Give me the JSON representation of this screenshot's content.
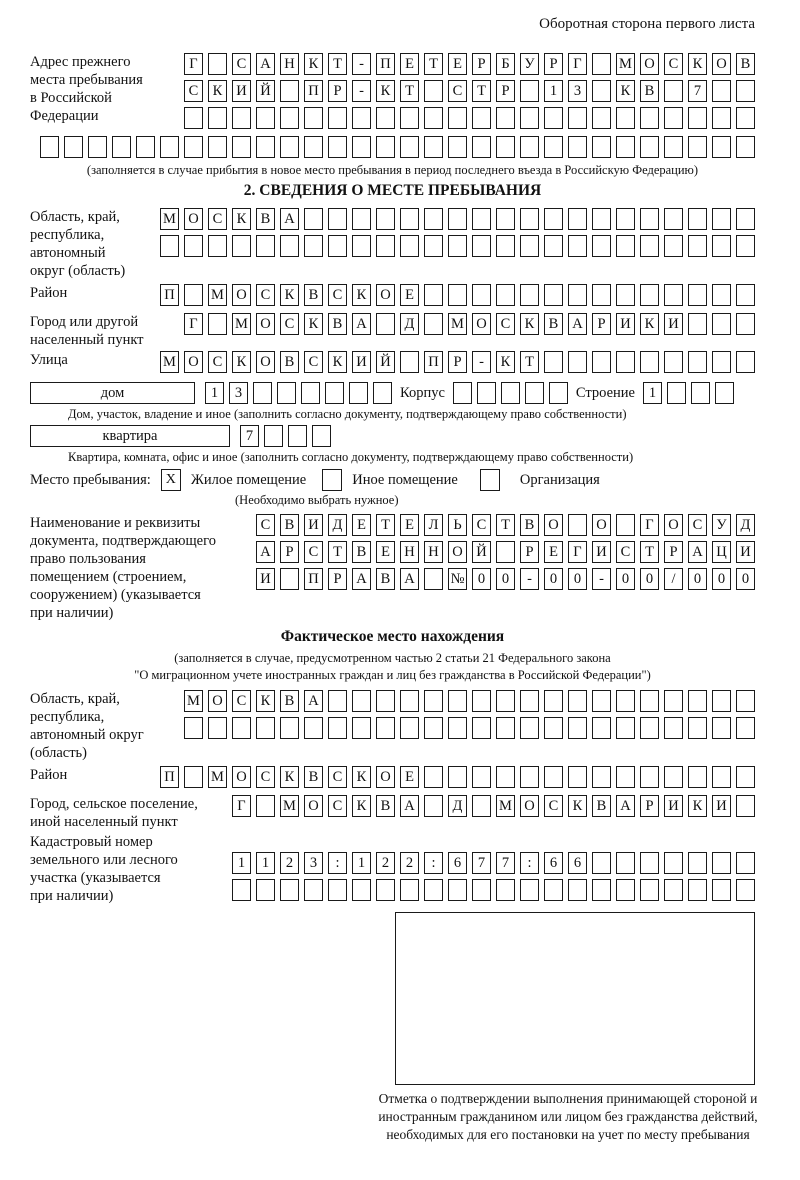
{
  "page": {
    "side_note": "Оборотная сторона первого листа"
  },
  "prev_address": {
    "label": "Адрес прежнего\nместа пребывания\nв Российской\nФедерации",
    "rows": [
      "Г САНКТ-ПЕТЕРБУРГ МОСКОВ",
      "СКИЙ ПР-КТ СТР 13 КВ 7  ",
      "                        "
    ],
    "full_row": "                              ",
    "caption": "(заполняется в случае прибытия в новое место пребывания в период последнего въезда в Российскую Федерацию)"
  },
  "section2": {
    "title": "2. СВЕДЕНИЯ О МЕСТЕ ПРЕБЫВАНИЯ",
    "region": {
      "label": "Область, край,\nреспублика,\nавтономный\nокруг (область)",
      "rows": [
        "МОСКВА                   ",
        "                         "
      ]
    },
    "district": {
      "label": "Район",
      "row": "П МОСКВСКОЕ              "
    },
    "city": {
      "label": "Город или другой\nнаселенный пункт",
      "row": "Г МОСКВА Д МОСКВАРИКИ   "
    },
    "street": {
      "label": "Улица",
      "row": "МОСКОВСКИЙ ПР-КТ         "
    },
    "house": {
      "label": "дом",
      "cells": "13      ",
      "korpus_label": "Корпус",
      "korpus_cells": "     ",
      "stroenie_label": "Строение",
      "stroenie_cells": "1   "
    },
    "house_caption": "Дом, участок, владение и иное (заполнить согласно документу, подтверждающему право собственности)",
    "apartment": {
      "label": "квартира",
      "cells": "7   "
    },
    "apartment_caption": "Квартира, комната, офис и иное (заполнить согласно документу, подтверждающему право собственности)",
    "stay": {
      "label": "Место пребывания:",
      "options": [
        {
          "mark": "X",
          "label": "Жилое помещение"
        },
        {
          "mark": "",
          "label": "Иное помещение"
        },
        {
          "mark": "",
          "label": "Организация"
        }
      ],
      "caption": "(Необходимо выбрать нужное)"
    },
    "document": {
      "label": "Наименование и реквизиты\nдокумента, подтверждающего\nправо пользования\nпомещением (строением,\nсооружением) (указывается\nпри наличии)",
      "rows": [
        "СВИДЕТЕЛЬСТВО О ГОСУД",
        "АРСТВЕННОЙ РЕГИСТРАЦИ",
        "И ПРАВА №00-00-00/000"
      ]
    }
  },
  "actual": {
    "title": "Фактическое место нахождения",
    "caption": "(заполняется в случае, предусмотренном частью 2 статьи 21 Федерального закона\n\"О миграционном учете иностранных граждан и лиц без гражданства в Российской Федерации\")",
    "region": {
      "label": "Область, край,\nреспублика,\nавтономный округ\n(область)",
      "rows": [
        "МОСКВА                  ",
        "                        "
      ]
    },
    "district": {
      "label": "Район",
      "row": "П МОСКВСКОЕ              "
    },
    "city": {
      "label": "Город, сельское поселение,\nиной населенный пункт",
      "row": "Г МОСКВА Д МОСКВАРИКИ "
    },
    "cadastral": {
      "label": "Кадастровый номер\nземельного или лесного\nучастка (указывается\nпри наличии)",
      "rows": [
        "1123:122:677:66       ",
        "                      "
      ]
    },
    "stamp_note": "Отметка о подтверждении выполнения принимающей стороной и иностранным гражданином или лицом без гражданства действий, необходимых для его постановки на учет по месту пребывания"
  }
}
